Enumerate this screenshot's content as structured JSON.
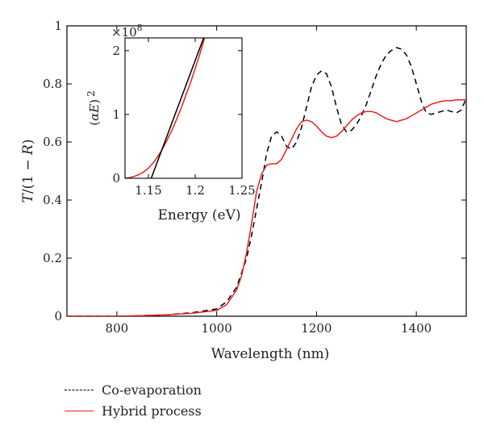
{
  "chart_data": [
    {
      "type": "line",
      "xlabel": "Wavelength (nm)",
      "ylabel_parts": [
        "T",
        "/(1 − ",
        "R",
        ")"
      ],
      "xlim": [
        700,
        1500
      ],
      "ylim": [
        0,
        1
      ],
      "xticks": [
        800,
        1000,
        1200,
        1400
      ],
      "yticks": [
        0,
        0.2,
        0.4,
        0.6,
        0.8,
        1
      ],
      "ytick_labels": [
        "0",
        "0.2",
        "0.4",
        "0.6",
        "0.8",
        "1"
      ],
      "series": [
        {
          "name": "Co-evaporation",
          "color": "#000000",
          "dash": "dashed",
          "x": [
            700,
            800,
            850,
            900,
            950,
            1000,
            1020,
            1040,
            1060,
            1070,
            1080,
            1090,
            1100,
            1110,
            1120,
            1130,
            1140,
            1150,
            1160,
            1170,
            1180,
            1190,
            1200,
            1210,
            1220,
            1230,
            1240,
            1250,
            1260,
            1270,
            1280,
            1290,
            1300,
            1310,
            1320,
            1330,
            1340,
            1350,
            1360,
            1370,
            1380,
            1390,
            1400,
            1410,
            1420,
            1430,
            1440,
            1450,
            1460,
            1470,
            1480,
            1490,
            1500
          ],
          "y": [
            0.0,
            0.0,
            0.002,
            0.005,
            0.012,
            0.025,
            0.05,
            0.1,
            0.2,
            0.28,
            0.37,
            0.46,
            0.56,
            0.62,
            0.635,
            0.62,
            0.585,
            0.575,
            0.6,
            0.65,
            0.72,
            0.79,
            0.83,
            0.845,
            0.835,
            0.79,
            0.72,
            0.66,
            0.635,
            0.64,
            0.66,
            0.69,
            0.73,
            0.78,
            0.83,
            0.87,
            0.9,
            0.915,
            0.925,
            0.92,
            0.9,
            0.86,
            0.8,
            0.74,
            0.7,
            0.695,
            0.7,
            0.705,
            0.71,
            0.705,
            0.7,
            0.71,
            0.75
          ]
        },
        {
          "name": "Hybrid process",
          "color": "#e8221c",
          "dash": "solid",
          "x": [
            700,
            800,
            850,
            900,
            950,
            1000,
            1020,
            1040,
            1050,
            1060,
            1070,
            1080,
            1090,
            1100,
            1110,
            1120,
            1130,
            1140,
            1150,
            1160,
            1170,
            1180,
            1190,
            1200,
            1210,
            1220,
            1230,
            1240,
            1250,
            1260,
            1270,
            1280,
            1290,
            1300,
            1310,
            1320,
            1330,
            1340,
            1350,
            1360,
            1370,
            1380,
            1390,
            1400,
            1410,
            1420,
            1430,
            1440,
            1450,
            1460,
            1470,
            1480,
            1490,
            1500
          ],
          "y": [
            0.0,
            0.0,
            0.002,
            0.005,
            0.01,
            0.02,
            0.04,
            0.09,
            0.14,
            0.22,
            0.32,
            0.43,
            0.49,
            0.52,
            0.525,
            0.525,
            0.54,
            0.575,
            0.61,
            0.645,
            0.67,
            0.675,
            0.67,
            0.655,
            0.635,
            0.62,
            0.615,
            0.62,
            0.635,
            0.655,
            0.675,
            0.69,
            0.7,
            0.705,
            0.705,
            0.7,
            0.69,
            0.68,
            0.675,
            0.67,
            0.675,
            0.68,
            0.69,
            0.7,
            0.71,
            0.72,
            0.73,
            0.735,
            0.74,
            0.742,
            0.742,
            0.745,
            0.745,
            0.745
          ]
        }
      ]
    },
    {
      "type": "line",
      "xlabel": "Energy (eV)",
      "ylabel_parts": [
        "(",
        "αE",
        ")",
        "2"
      ],
      "multiplier_base": "×10",
      "multiplier_exp": "8",
      "xlim": [
        1.125,
        1.25
      ],
      "ylim": [
        0,
        2.2
      ],
      "xticks": [
        1.15,
        1.2,
        1.25
      ],
      "xtick_labels": [
        "1.15",
        "1.2",
        "1.25"
      ],
      "yticks": [
        0,
        1,
        2
      ],
      "ytick_labels": [
        "0",
        "1",
        "2"
      ],
      "series": [
        {
          "name": "",
          "color": "#e8221c",
          "dash": "solid",
          "x": [
            1.125,
            1.13,
            1.135,
            1.14,
            1.145,
            1.15,
            1.155,
            1.16,
            1.165,
            1.17,
            1.175,
            1.18,
            1.185,
            1.19,
            1.195,
            1.2,
            1.205,
            1.21
          ],
          "y": [
            0.0,
            0.01,
            0.03,
            0.06,
            0.1,
            0.16,
            0.24,
            0.34,
            0.46,
            0.6,
            0.75,
            0.92,
            1.1,
            1.3,
            1.5,
            1.72,
            1.95,
            2.2
          ]
        },
        {
          "name": "",
          "color": "#000000",
          "dash": "solid",
          "x": [
            1.153,
            1.209
          ],
          "y": [
            0.0,
            2.2
          ]
        }
      ]
    }
  ]
}
